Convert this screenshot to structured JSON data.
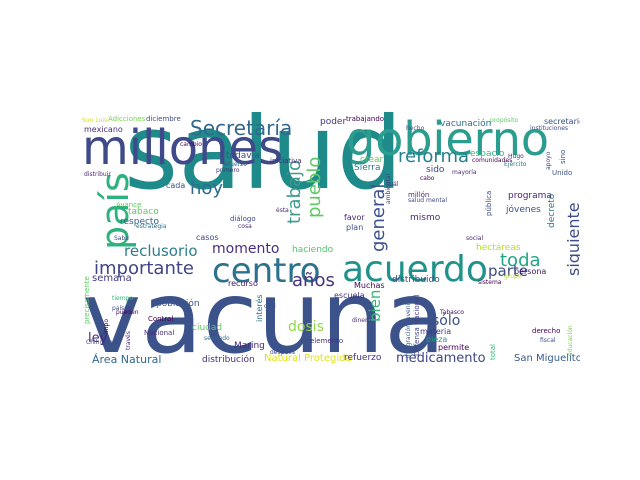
{
  "words": [
    {
      "text": "salud",
      "color": "#1f8a8a"
    },
    {
      "text": "vacuna",
      "color": "#3b528b"
    },
    {
      "text": "millones",
      "color": "#3e4a89"
    },
    {
      "text": "gobierno",
      "color": "#2a9d8f"
    },
    {
      "text": "acuerdo",
      "color": "#21918c"
    },
    {
      "text": "centro",
      "color": "#2c728e"
    },
    {
      "text": "país",
      "color": "#2db27d"
    },
    {
      "text": "Secretaría",
      "color": "#31688e"
    },
    {
      "text": "reforma",
      "color": "#27808e"
    },
    {
      "text": "importante",
      "color": "#414487"
    },
    {
      "text": "hoy",
      "color": "#2f6c8e"
    },
    {
      "text": "años",
      "color": "#46327e"
    },
    {
      "text": "trabajo",
      "color": "#3f9b8f"
    },
    {
      "text": "pueblo",
      "color": "#5ec962"
    },
    {
      "text": "general",
      "color": "#3b528b"
    },
    {
      "text": "siguiente",
      "color": "#3e4c8a"
    },
    {
      "text": "toda",
      "color": "#21a685"
    },
    {
      "text": "reclusorio",
      "color": "#2c7e8e"
    },
    {
      "text": "momento",
      "color": "#472f7d"
    },
    {
      "text": "parte",
      "color": "#3e4989"
    },
    {
      "text": "bien",
      "color": "#35b779"
    },
    {
      "text": "sólo",
      "color": "#3b528b"
    },
    {
      "text": "dosis",
      "color": "#90d743"
    },
    {
      "text": "ley",
      "color": "#482878"
    },
    {
      "text": "medicamento",
      "color": "#3f4788"
    },
    {
      "text": "Área Natural",
      "color": "#31688e"
    },
    {
      "text": "San Miguelito",
      "color": "#365c8d"
    },
    {
      "text": "Natural Protegida",
      "color": "#e2e418"
    },
    {
      "text": "distribución",
      "color": "#46307e"
    },
    {
      "text": "población",
      "color": "#39568c"
    },
    {
      "text": "semana",
      "color": "#443a83"
    },
    {
      "text": "respecto",
      "color": "#365d8d"
    },
    {
      "text": "tabaco",
      "color": "#5ec962"
    },
    {
      "text": "casos",
      "color": "#414487"
    },
    {
      "text": "todavía",
      "color": "#3e4c8a"
    },
    {
      "text": "vacunación",
      "color": "#2c728e"
    },
    {
      "text": "espacio",
      "color": "#35b779"
    },
    {
      "text": "programa",
      "color": "#482475"
    },
    {
      "text": "jóvenes",
      "color": "#3b528b"
    },
    {
      "text": "decreto",
      "color": "#2a788e"
    },
    {
      "text": "persona",
      "color": "#471365"
    },
    {
      "text": "distribuido",
      "color": "#3e4a89"
    },
    {
      "text": "favor",
      "color": "#482878"
    },
    {
      "text": "haciendo",
      "color": "#52c569"
    },
    {
      "text": "plan",
      "color": "#3b528b"
    },
    {
      "text": "mismo",
      "color": "#472c7a"
    },
    {
      "text": "hectáreas",
      "color": "#b5de2b"
    },
    {
      "text": "Sierra",
      "color": "#2a788e"
    },
    {
      "text": "sido",
      "color": "#414487"
    },
    {
      "text": "crear",
      "color": "#5ec962"
    },
    {
      "text": "poder",
      "color": "#46337e"
    },
    {
      "text": "trabajando",
      "color": "#440154"
    },
    {
      "text": "secretario",
      "color": "#3b528b"
    },
    {
      "text": "mexicano",
      "color": "#472d7b"
    },
    {
      "text": "Adicciones",
      "color": "#7ad151"
    },
    {
      "text": "diciembre",
      "color": "#3e4a89"
    },
    {
      "text": "iniciativa",
      "color": "#482878"
    },
    {
      "text": "recurso",
      "color": "#471063"
    },
    {
      "text": "Muchas",
      "color": "#440154"
    },
    {
      "text": "escuela",
      "color": "#46307e"
    },
    {
      "text": "interés",
      "color": "#2c728e"
    },
    {
      "text": "ciudad",
      "color": "#5ec962"
    },
    {
      "text": "Maring",
      "color": "#482878"
    },
    {
      "text": "refuerzo",
      "color": "#46327e"
    },
    {
      "text": "permite",
      "color": "#440154"
    },
    {
      "text": "pieza",
      "color": "#1f9e89"
    },
    {
      "text": "materia",
      "color": "#443983"
    },
    {
      "text": "total",
      "color": "#35b779"
    },
    {
      "text": "Defensa Nacional",
      "color": "#414487"
    },
    {
      "text": "Nacional",
      "color": "#46327e"
    },
    {
      "text": "Control",
      "color": "#440154"
    },
    {
      "text": "Chihuahua",
      "color": "#3e4a89"
    },
    {
      "text": "precisamente",
      "color": "#5ec962"
    },
    {
      "text": "Avance",
      "color": "#5ec962"
    },
    {
      "text": "cada",
      "color": "#3b528b"
    },
    {
      "text": "diálogo",
      "color": "#3e4a89"
    },
    {
      "text": "cosa",
      "color": "#482878"
    },
    {
      "text": "pública",
      "color": "#3e4a89"
    },
    {
      "text": "millón",
      "color": "#472a7a"
    },
    {
      "text": "derecho",
      "color": "#440154"
    },
    {
      "text": "fiscal",
      "color": "#3b528b"
    },
    {
      "text": "social",
      "color": "#482878"
    },
    {
      "text": "sistema",
      "color": "#440154"
    },
    {
      "text": "elemento",
      "color": "#46307e"
    },
    {
      "text": "después",
      "color": "#3e4a89"
    },
    {
      "text": "segundo",
      "color": "#2c728e"
    },
    {
      "text": "dinero",
      "color": "#482878"
    },
    {
      "text": "Tabasco",
      "color": "#440154"
    },
    {
      "text": "Integración Juvenil",
      "color": "#365c8d"
    },
    {
      "text": "Unido",
      "color": "#3b528b"
    },
    {
      "text": "Ejército",
      "color": "#2a788e"
    },
    {
      "text": "Hugo",
      "color": "#46307e"
    },
    {
      "text": "mayoría",
      "color": "#482878"
    },
    {
      "text": "comunidades",
      "color": "#440154"
    },
    {
      "text": "instituciones",
      "color": "#3e4a89"
    },
    {
      "text": "propósito",
      "color": "#5ec962"
    },
    {
      "text": "apoyo",
      "color": "#414487"
    },
    {
      "text": "sino",
      "color": "#3b528b"
    },
    {
      "text": "cambio",
      "color": "#440154"
    },
    {
      "text": "primero",
      "color": "#472d7b"
    },
    {
      "text": "distribuir",
      "color": "#482878"
    },
    {
      "text": "refuerzo",
      "color": "#365c8d"
    },
    {
      "text": "estrategia",
      "color": "#2c728e"
    },
    {
      "text": "cuál",
      "color": "#46307e"
    },
    {
      "text": "salud mental",
      "color": "#3e4a89"
    },
    {
      "text": "cabo",
      "color": "#440154"
    },
    {
      "text": "ambiental",
      "color": "#414487"
    },
    {
      "text": "tiempo",
      "color": "#35b779"
    },
    {
      "text": "través",
      "color": "#482878"
    },
    {
      "text": "casi",
      "color": "#3b528b"
    },
    {
      "text": "pueden",
      "color": "#440154"
    },
    {
      "text": "países",
      "color": "#3e4a89"
    },
    {
      "text": "educación",
      "color": "#7ad151"
    },
    {
      "text": "grupo",
      "color": "#b5de2b"
    },
    {
      "text": "Sun Luis",
      "color": "#d8e219"
    },
    {
      "text": "Sabe",
      "color": "#3e4a89"
    },
    {
      "text": "ésta",
      "color": "#482878"
    },
    {
      "text": "impo",
      "color": "#440154"
    },
    {
      "text": "hecho",
      "color": "#3b528b"
    }
  ]
}
